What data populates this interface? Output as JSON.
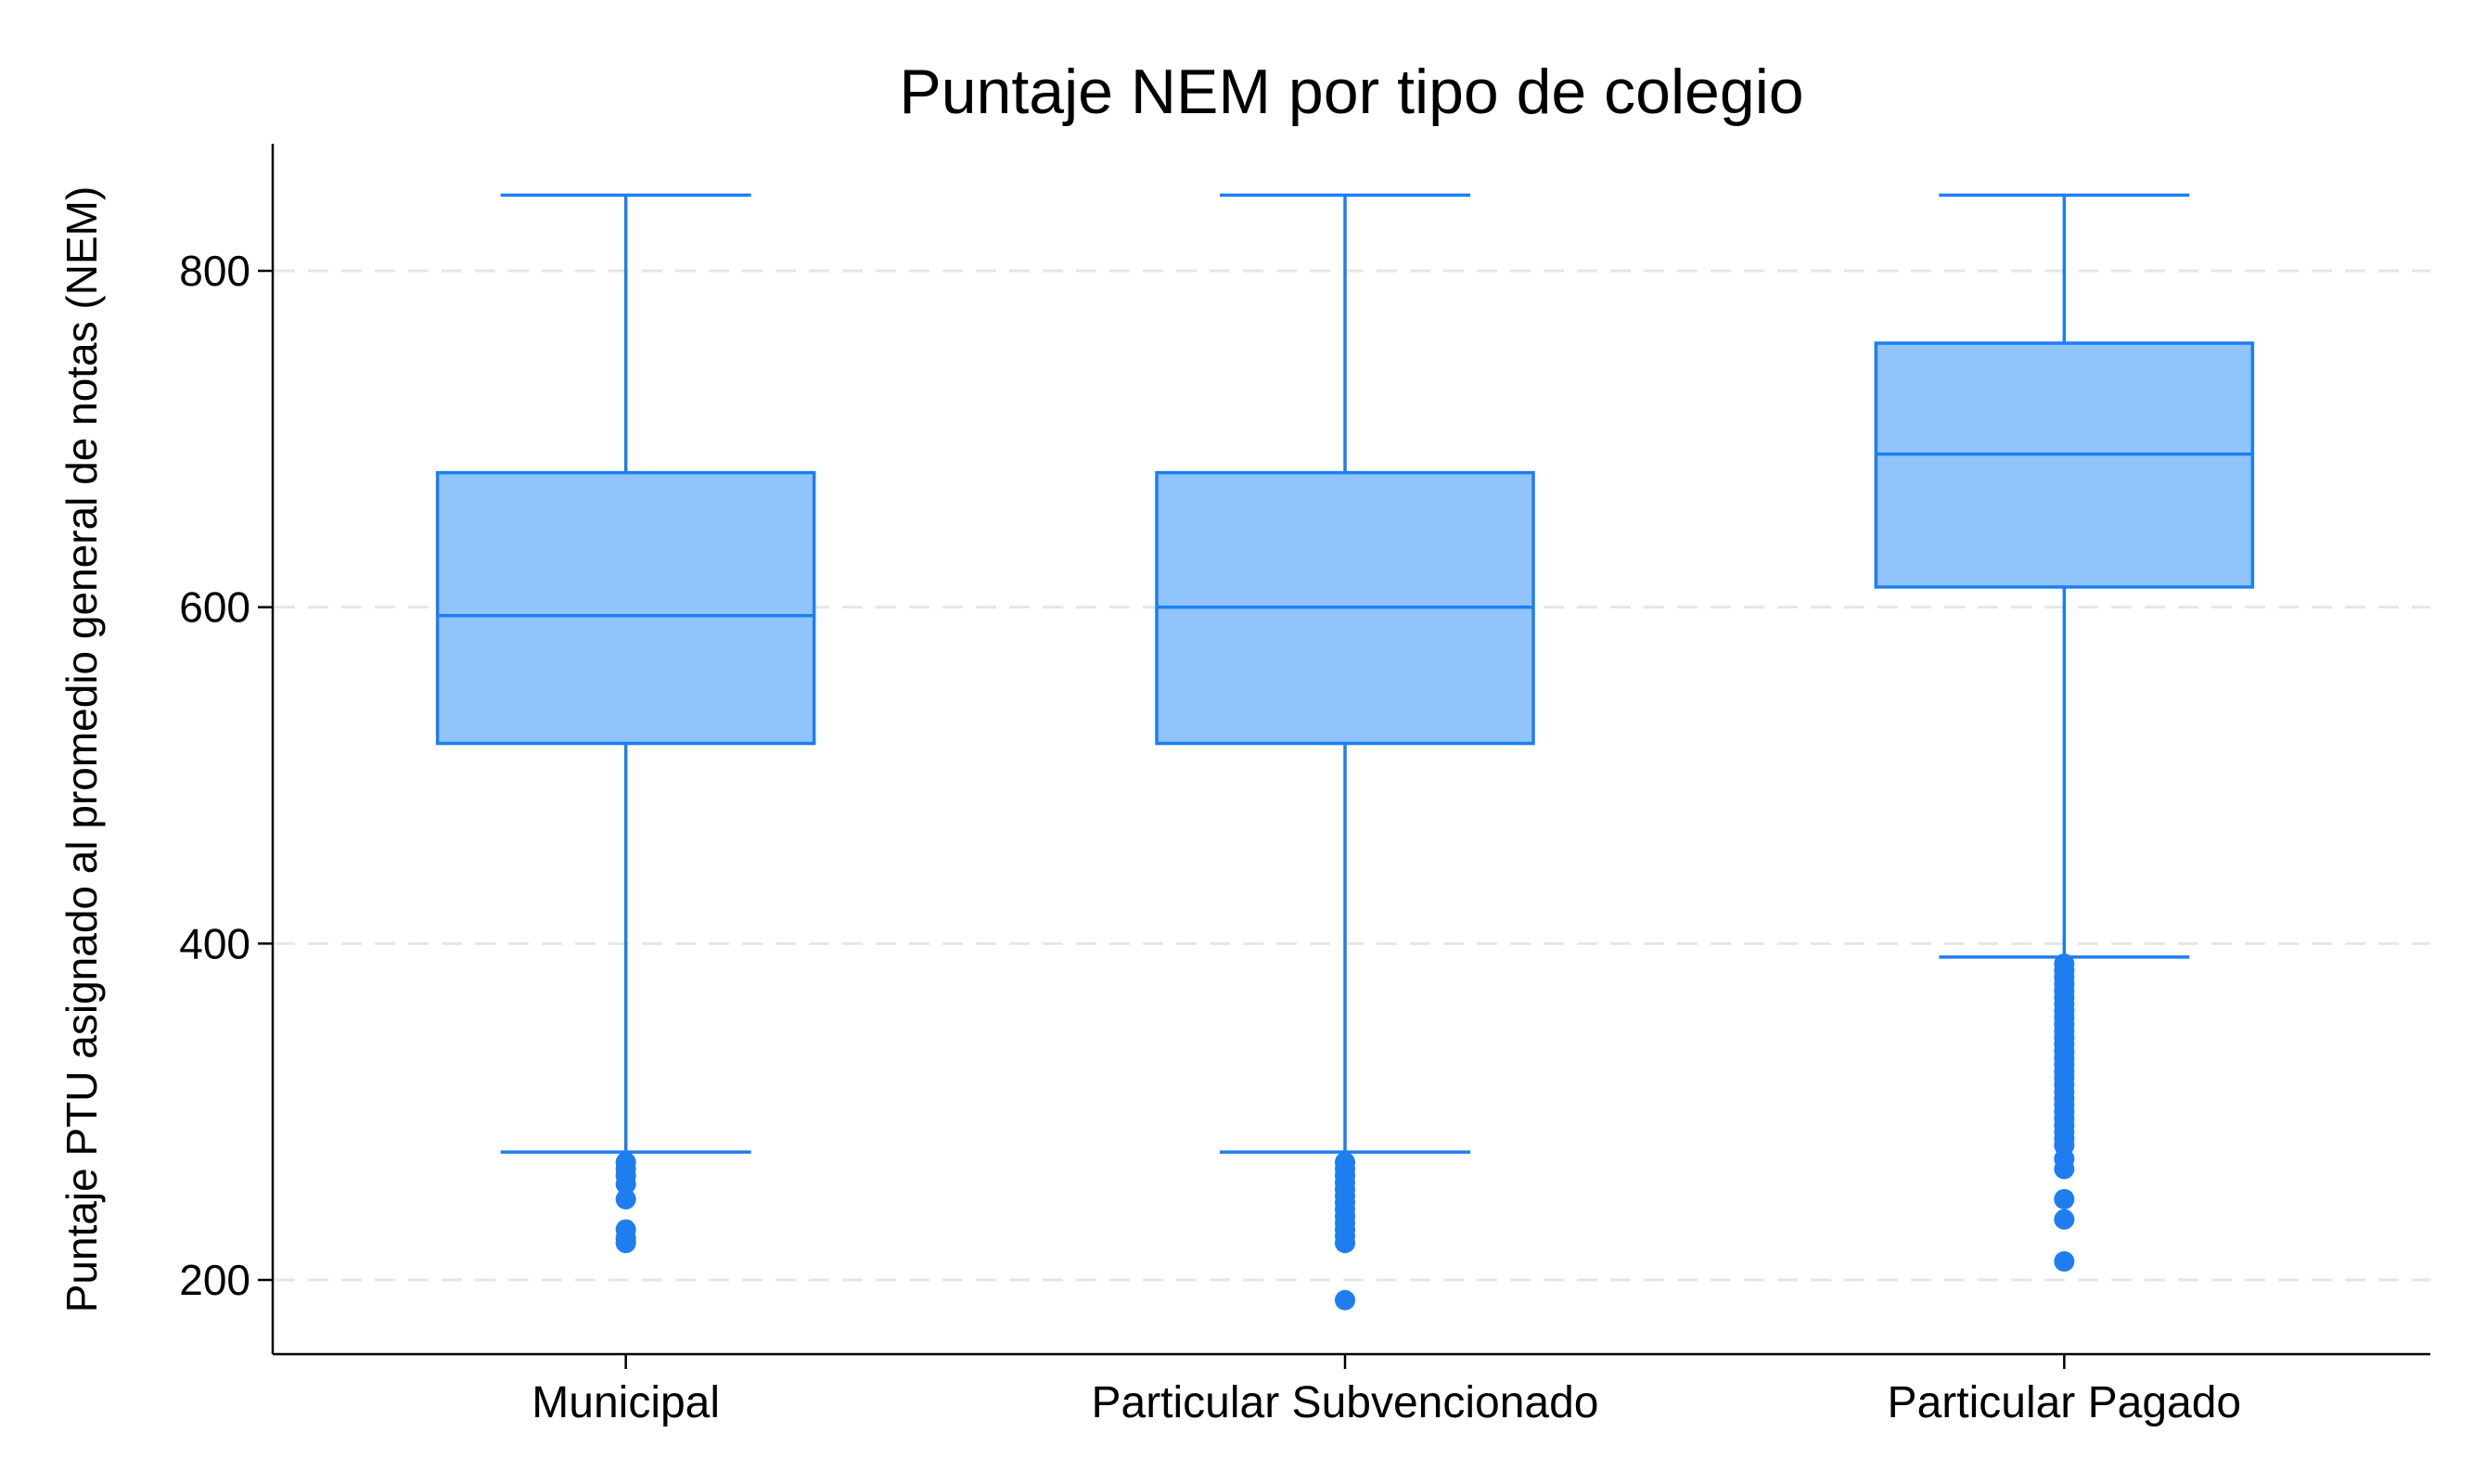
{
  "chart_data": {
    "type": "box",
    "title": "Puntaje NEM por tipo de colegio",
    "xlabel": "",
    "ylabel": "Puntaje PTU asignado al promedio general de notas (NEM)",
    "ylim": [
      157,
      875
    ],
    "yticks": [
      200,
      400,
      600,
      800
    ],
    "grid": "horizontal dashed",
    "colors": {
      "fill": "#90C4FA",
      "stroke": "#1E7EF0",
      "outlier": "#1E7EF0",
      "grid": "#e6e6e6"
    },
    "categories": [
      "Municipal",
      "Particular Subvencionado",
      "Particular Pagado"
    ],
    "boxes": [
      {
        "category": "Municipal",
        "whisker_low": 276,
        "q1": 519,
        "median": 595,
        "q3": 680,
        "whisker_high": 845,
        "outliers": [
          270,
          266,
          262,
          257,
          248,
          230,
          225,
          222
        ]
      },
      {
        "category": "Particular Subvencionado",
        "whisker_low": 276,
        "q1": 519,
        "median": 600,
        "q3": 680,
        "whisker_high": 845,
        "outliers": [
          270,
          266,
          262,
          258,
          254,
          250,
          246,
          242,
          238,
          234,
          230,
          226,
          222,
          188
        ]
      },
      {
        "category": "Particular Pagado",
        "whisker_low": 392,
        "q1": 612,
        "median": 691,
        "q3": 757,
        "whisker_high": 845,
        "outliers": [
          388,
          384,
          380,
          376,
          372,
          368,
          364,
          360,
          356,
          352,
          348,
          344,
          340,
          336,
          332,
          328,
          324,
          320,
          316,
          312,
          308,
          304,
          300,
          296,
          292,
          288,
          284,
          280,
          272,
          266,
          248,
          236,
          211
        ]
      }
    ]
  }
}
